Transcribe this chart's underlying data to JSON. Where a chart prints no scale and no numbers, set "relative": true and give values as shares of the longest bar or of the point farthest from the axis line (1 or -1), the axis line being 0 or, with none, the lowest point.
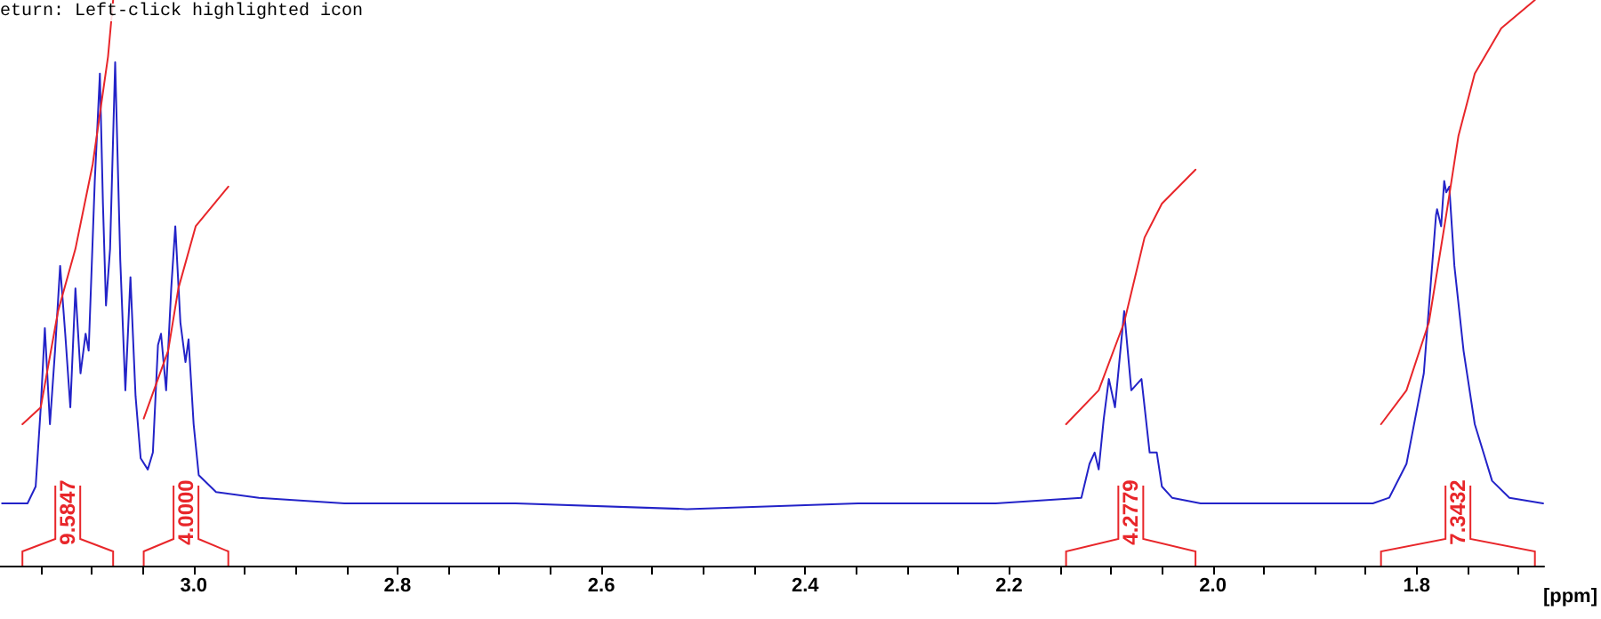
{
  "chart_data": {
    "type": "line",
    "relative": true,
    "xlabel": "[ppm]",
    "annotations": [
      "eturn: Left-click highlighted icon",
      "9.5847",
      "4.0000",
      "4.2779",
      "7.3432"
    ],
    "xlim": [
      3.19,
      1.675
    ],
    "xticks": [
      {
        "value": 3.15,
        "label": null
      },
      {
        "value": 3.1,
        "label": null
      },
      {
        "value": 3.05,
        "label": null
      },
      {
        "value": 3.0,
        "label": "3.0"
      },
      {
        "value": 2.95,
        "label": null
      },
      {
        "value": 2.9,
        "label": null
      },
      {
        "value": 2.85,
        "label": null
      },
      {
        "value": 2.8,
        "label": "2.8"
      },
      {
        "value": 2.75,
        "label": null
      },
      {
        "value": 2.7,
        "label": null
      },
      {
        "value": 2.65,
        "label": null
      },
      {
        "value": 2.6,
        "label": "2.6"
      },
      {
        "value": 2.55,
        "label": null
      },
      {
        "value": 2.5,
        "label": null
      },
      {
        "value": 2.45,
        "label": null
      },
      {
        "value": 2.4,
        "label": "2.4"
      },
      {
        "value": 2.35,
        "label": null
      },
      {
        "value": 2.3,
        "label": null
      },
      {
        "value": 2.25,
        "label": null
      },
      {
        "value": 2.2,
        "label": "2.2"
      },
      {
        "value": 2.15,
        "label": null
      },
      {
        "value": 2.1,
        "label": null
      },
      {
        "value": 2.05,
        "label": null
      },
      {
        "value": 2.0,
        "label": "2.0"
      },
      {
        "value": 1.95,
        "label": null
      },
      {
        "value": 1.9,
        "label": null
      },
      {
        "value": 1.85,
        "label": null
      },
      {
        "value": 1.8,
        "label": "1.8"
      },
      {
        "value": 1.75,
        "label": null
      },
      {
        "value": 1.7,
        "label": null
      }
    ],
    "grid": false,
    "marker": "none",
    "line_style": "solid",
    "series": [
      {
        "color": "#2323c8",
        "x": [
          3.188,
          3.163,
          3.155,
          3.15,
          3.146,
          3.141,
          3.136,
          3.131,
          3.126,
          3.121,
          3.116,
          3.111,
          3.106,
          3.103,
          3.097,
          3.092,
          3.089,
          3.086,
          3.082,
          3.077,
          3.072,
          3.067,
          3.062,
          3.057,
          3.052,
          3.045,
          3.04,
          3.035,
          3.032,
          3.027,
          3.022,
          3.018,
          3.013,
          3.008,
          3.005,
          3.0,
          2.995,
          2.978,
          2.936,
          2.852,
          2.684,
          2.516,
          2.348,
          2.213,
          2.129,
          2.121,
          2.116,
          2.112,
          2.107,
          2.102,
          2.096,
          2.087,
          2.08,
          2.07,
          2.062,
          2.055,
          2.05,
          2.04,
          2.012,
          1.928,
          1.843,
          1.827,
          1.81,
          1.793,
          1.781,
          1.78,
          1.776,
          1.773,
          1.771,
          1.768,
          1.763,
          1.754,
          1.743,
          1.726,
          1.709,
          1.676
        ],
        "values": [
          0.11,
          0.11,
          0.14,
          0.28,
          0.42,
          0.25,
          0.38,
          0.53,
          0.41,
          0.28,
          0.49,
          0.34,
          0.41,
          0.38,
          0.68,
          0.87,
          0.64,
          0.46,
          0.56,
          0.89,
          0.54,
          0.31,
          0.51,
          0.3,
          0.19,
          0.17,
          0.2,
          0.39,
          0.41,
          0.31,
          0.49,
          0.6,
          0.43,
          0.36,
          0.4,
          0.25,
          0.16,
          0.13,
          0.12,
          0.11,
          0.11,
          0.1,
          0.11,
          0.11,
          0.12,
          0.18,
          0.2,
          0.17,
          0.26,
          0.33,
          0.28,
          0.45,
          0.31,
          0.33,
          0.2,
          0.2,
          0.14,
          0.12,
          0.11,
          0.11,
          0.11,
          0.12,
          0.18,
          0.34,
          0.62,
          0.63,
          0.6,
          0.68,
          0.66,
          0.67,
          0.53,
          0.38,
          0.25,
          0.15,
          0.12,
          0.11
        ]
      },
      {
        "color": "#e8262a",
        "x": [
          3.168,
          3.15,
          3.133,
          3.116,
          3.099,
          3.084,
          3.079
        ],
        "values": [
          0.25,
          0.28,
          0.45,
          0.56,
          0.71,
          0.9,
          1.0
        ]
      },
      {
        "color": "#e8262a",
        "x": [
          3.049,
          3.025,
          3.015,
          2.998,
          2.966
        ],
        "values": [
          0.26,
          0.38,
          0.49,
          0.6,
          0.67
        ]
      },
      {
        "color": "#e8262a",
        "x": [
          2.144,
          2.112,
          2.087,
          2.067,
          2.05,
          2.017
        ],
        "values": [
          0.25,
          0.31,
          0.43,
          0.58,
          0.64,
          0.7
        ]
      },
      {
        "color": "#e8262a",
        "x": [
          1.835,
          1.81,
          1.788,
          1.771,
          1.759,
          1.743,
          1.717,
          1.684
        ],
        "values": [
          0.25,
          0.31,
          0.43,
          0.62,
          0.76,
          0.87,
          0.95,
          1.0
        ]
      }
    ]
  }
}
